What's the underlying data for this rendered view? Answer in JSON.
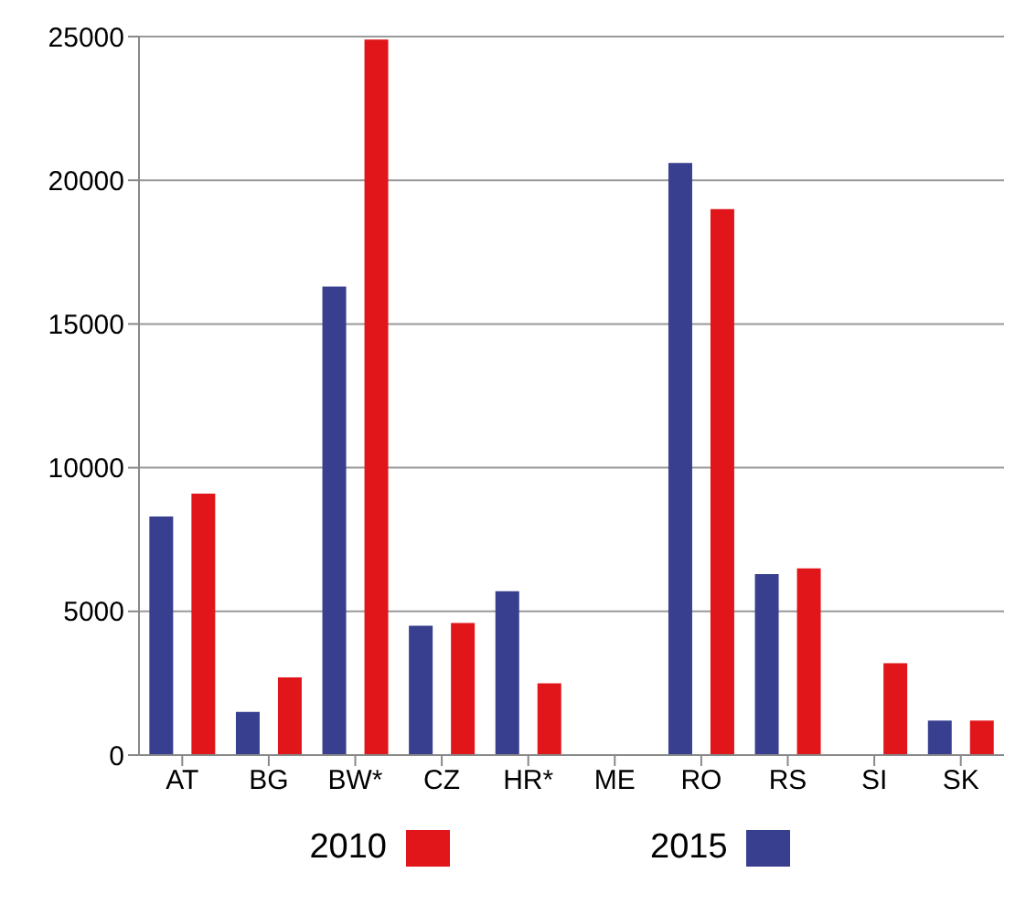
{
  "chart_data": {
    "type": "bar",
    "categories": [
      "AT",
      "BG",
      "BW*",
      "CZ",
      "HR*",
      "ME",
      "RO",
      "RS",
      "SI",
      "SK"
    ],
    "series": [
      {
        "name": "2010",
        "color": "#e0161b",
        "values": [
          9100,
          2700,
          24900,
          4600,
          2500,
          null,
          19000,
          6500,
          3200,
          1200
        ]
      },
      {
        "name": "2015",
        "color": "#383f8f",
        "values": [
          8300,
          1500,
          16300,
          4500,
          5700,
          null,
          20600,
          6300,
          null,
          1200
        ]
      }
    ],
    "ylim": [
      0,
      25000
    ],
    "yticks": [
      0,
      5000,
      10000,
      15000,
      20000,
      25000
    ],
    "grid": "y",
    "legend": "bottom"
  }
}
